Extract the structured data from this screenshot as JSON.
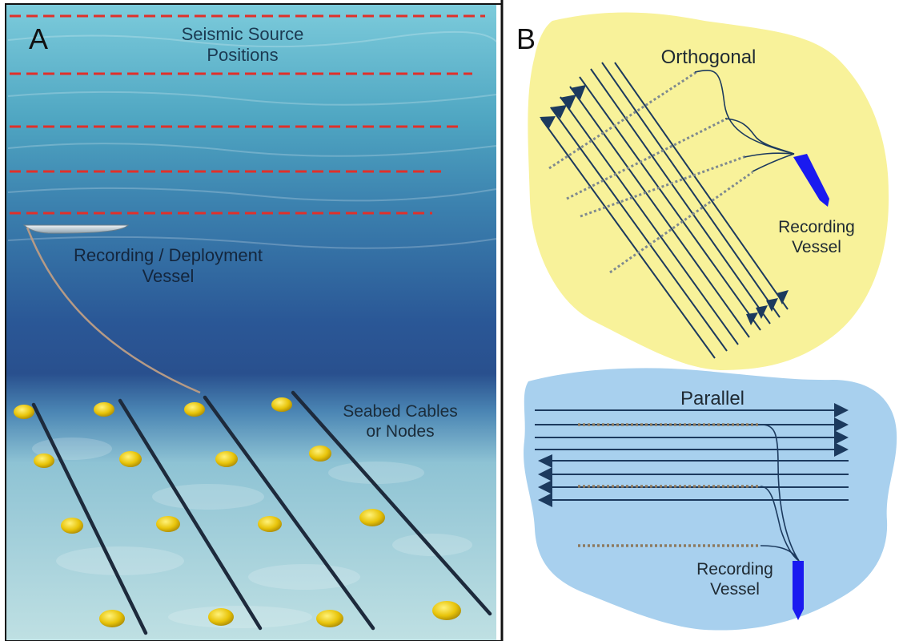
{
  "panel_a": {
    "letter": "A",
    "source_label_line1": "Seismic Source",
    "source_label_line2": "Positions",
    "vessel_label_line1": "Recording / Deployment",
    "vessel_label_line2": "Vessel",
    "seabed_label_line1": "Seabed Cables",
    "seabed_label_line2": "or Nodes"
  },
  "panel_b": {
    "letter": "B",
    "orthogonal_label": "Orthogonal",
    "orthogonal_vessel_line1": "Recording",
    "orthogonal_vessel_line2": "Vessel",
    "parallel_label": "Parallel",
    "parallel_vessel_line1": "Recording",
    "parallel_vessel_line2": "Vessel"
  },
  "colors": {
    "water_top": "#6fc4d6",
    "water_deep": "#27538f",
    "seabed": "#b9dce0",
    "source_line": "#e0302a",
    "cable": "#1d2a3c",
    "node": "#e4c20a",
    "orthogonal_area": "#f8f29a",
    "parallel_area": "#a8d0ee",
    "vessel_blue": "#1a1af0",
    "line_navy": "#1c3a5e"
  }
}
